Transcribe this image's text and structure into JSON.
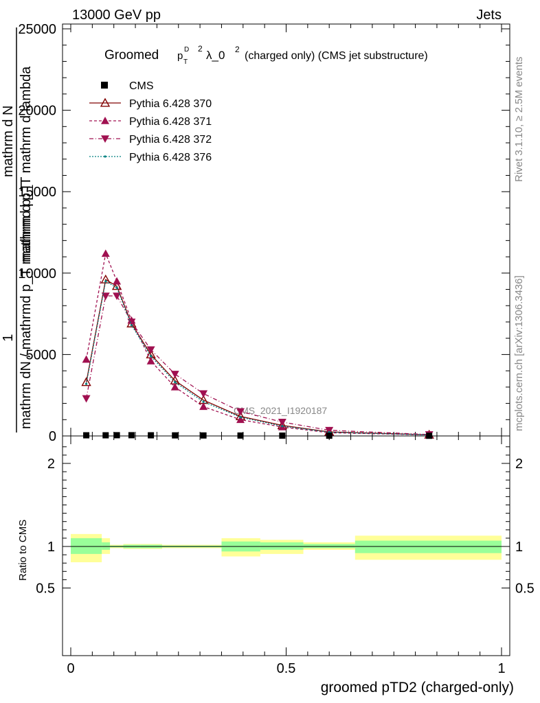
{
  "chart_data": {
    "type": "line",
    "header_left": "13000 GeV pp",
    "header_right": "Jets",
    "title_prefix": "Groomed",
    "title_suffix": "λ_0",
    "title_tail": "(charged only) (CMS jet substructure)",
    "title_p": "p",
    "title_T": "T",
    "title_D": "D",
    "title_2": "2",
    "xlabel": "groomed pTD2 (charged-only)",
    "ylabel_frac_num": "1",
    "ylabel_main_den": "mathrm dN / mathrmd p_T mathrmd p_T",
    "ylabel_main_num": "mathrm d N",
    "ylabel_main_num2": "mathrm d p_T mathrm d lambda",
    "ratio_ylabel": "Ratio to CMS",
    "side_label_top": "Rivet 3.1.10, ≥ 2.5M events",
    "side_label_bottom": "mcplots.cern.ch [arXiv:1306.3436]",
    "watermark": "CMS_2021_I1920187",
    "xlim": [
      0,
      1
    ],
    "ylim": [
      0,
      25000
    ],
    "ratio_ylim": [
      0.3,
      2.3
    ],
    "x_ticks": [
      {
        "v": 0,
        "label": "0"
      },
      {
        "v": 0.5,
        "label": "0.5"
      },
      {
        "v": 1,
        "label": "1"
      }
    ],
    "y_ticks": [
      {
        "v": 0,
        "label": "0"
      },
      {
        "v": 5000,
        "label": "5000"
      },
      {
        "v": 10000,
        "label": "10000"
      },
      {
        "v": 15000,
        "label": "15000"
      },
      {
        "v": 20000,
        "label": "20000"
      },
      {
        "v": 25000,
        "label": "25000"
      }
    ],
    "ratio_y_ticks": [
      {
        "v": 0.5,
        "label": "0.5"
      },
      {
        "v": 1,
        "label": "1"
      },
      {
        "v": 2,
        "label": "2"
      }
    ],
    "x": [
      0.036,
      0.081,
      0.107,
      0.141,
      0.186,
      0.242,
      0.308,
      0.394,
      0.491,
      0.6,
      0.832
    ],
    "data": {
      "name": "CMS",
      "values": [
        40,
        40,
        45,
        45,
        40,
        35,
        30,
        25,
        20,
        15,
        10
      ],
      "color": "#000000"
    },
    "series": [
      {
        "name": "Pythia 6.428 370",
        "values": [
          3300,
          9600,
          9200,
          6900,
          5000,
          3400,
          2200,
          1200,
          650,
          250,
          70
        ],
        "color": "#800000",
        "marker": "triangle-open",
        "dash": ""
      },
      {
        "name": "Pythia 6.428 371",
        "values": [
          4700,
          11200,
          9500,
          7100,
          4600,
          3000,
          1800,
          1000,
          550,
          200,
          60
        ],
        "color": "#a01050",
        "marker": "triangle-up",
        "dash": "4,3"
      },
      {
        "name": "Pythia 6.428 372",
        "values": [
          2300,
          8600,
          8600,
          7000,
          5300,
          3800,
          2600,
          1500,
          850,
          350,
          90
        ],
        "color": "#a01050",
        "marker": "triangle-down",
        "dash": "6,3,1,3"
      },
      {
        "name": "Pythia 6.428 376",
        "values": [
          3200,
          9500,
          9100,
          6800,
          4900,
          3300,
          2100,
          1150,
          600,
          230,
          65
        ],
        "color": "#008080",
        "marker": "dot",
        "dash": "2,2"
      }
    ],
    "bins": [
      0.0,
      0.072,
      0.091,
      0.122,
      0.162,
      0.212,
      0.275,
      0.35,
      0.44,
      0.54,
      0.66,
      1.0
    ],
    "band_inner": [
      [
        0.91,
        1.1
      ],
      [
        0.96,
        1.05
      ],
      [
        0.99,
        1.01
      ],
      [
        0.98,
        1.02
      ],
      [
        0.98,
        1.02
      ],
      [
        0.99,
        1.01
      ],
      [
        0.99,
        1.01
      ],
      [
        0.94,
        1.06
      ],
      [
        0.96,
        1.05
      ],
      [
        0.98,
        1.03
      ],
      [
        0.92,
        1.07
      ]
    ],
    "band_outer": [
      [
        0.81,
        1.15
      ],
      [
        0.91,
        1.1
      ],
      [
        0.98,
        1.02
      ],
      [
        0.97,
        1.03
      ],
      [
        0.97,
        1.03
      ],
      [
        0.98,
        1.02
      ],
      [
        0.98,
        1.02
      ],
      [
        0.88,
        1.1
      ],
      [
        0.91,
        1.08
      ],
      [
        0.96,
        1.05
      ],
      [
        0.84,
        1.13
      ]
    ]
  }
}
